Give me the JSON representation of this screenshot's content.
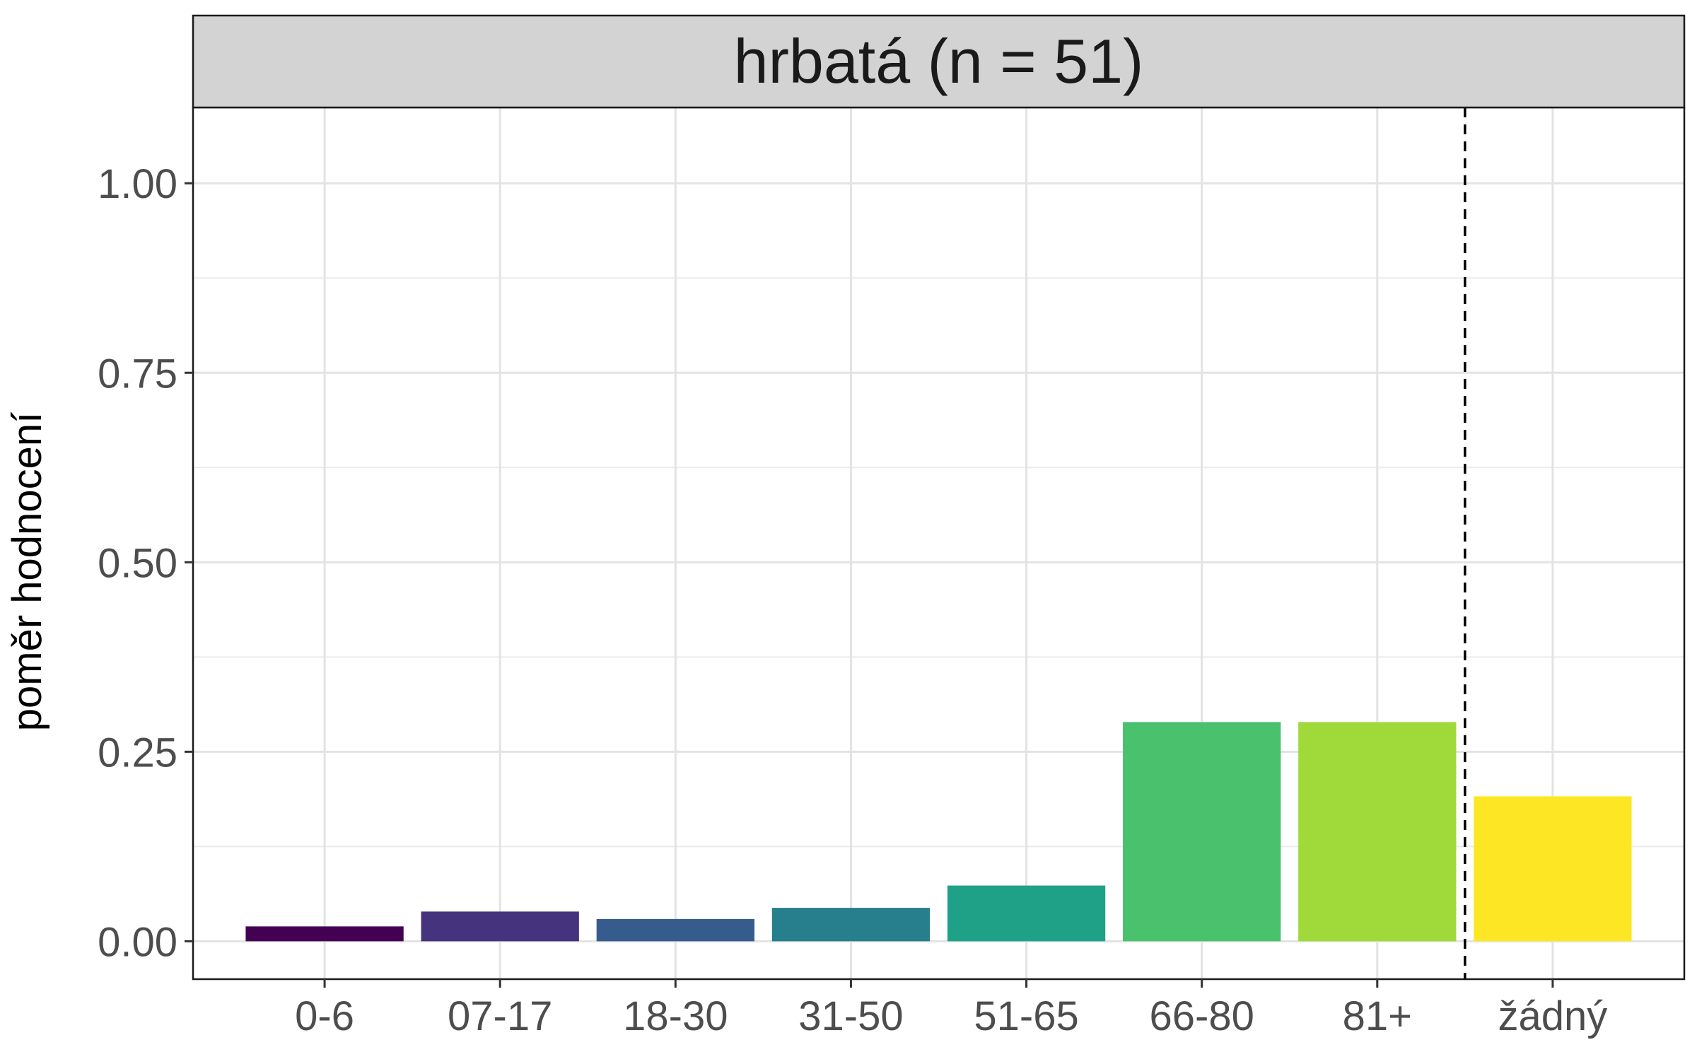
{
  "chart_data": {
    "type": "bar",
    "title": "hrbatá (n = 51)",
    "xlabel": "",
    "ylabel": "poměr hodnocení",
    "categories": [
      "0-6",
      "07-17",
      "18-30",
      "31-50",
      "51-65",
      "66-80",
      "81+",
      "žádný"
    ],
    "values": [
      0.0196,
      0.0392,
      0.0294,
      0.0441,
      0.0735,
      0.2892,
      0.2892,
      0.1912
    ],
    "colors": [
      "#440154",
      "#46337E",
      "#365C8D",
      "#277F8E",
      "#1FA187",
      "#4AC16D",
      "#9FDA3A",
      "#FDE725"
    ],
    "ylim": [
      -0.05,
      1.1
    ],
    "y_ticks": [
      "0.00",
      "0.25",
      "0.50",
      "0.75",
      "1.00"
    ],
    "y_tick_values": [
      0,
      0.25,
      0.5,
      0.75,
      1.0
    ],
    "grid": true,
    "reference_line": {
      "style": "dashed",
      "between_categories": [
        "81+",
        "žádný"
      ]
    },
    "legend": "none"
  }
}
